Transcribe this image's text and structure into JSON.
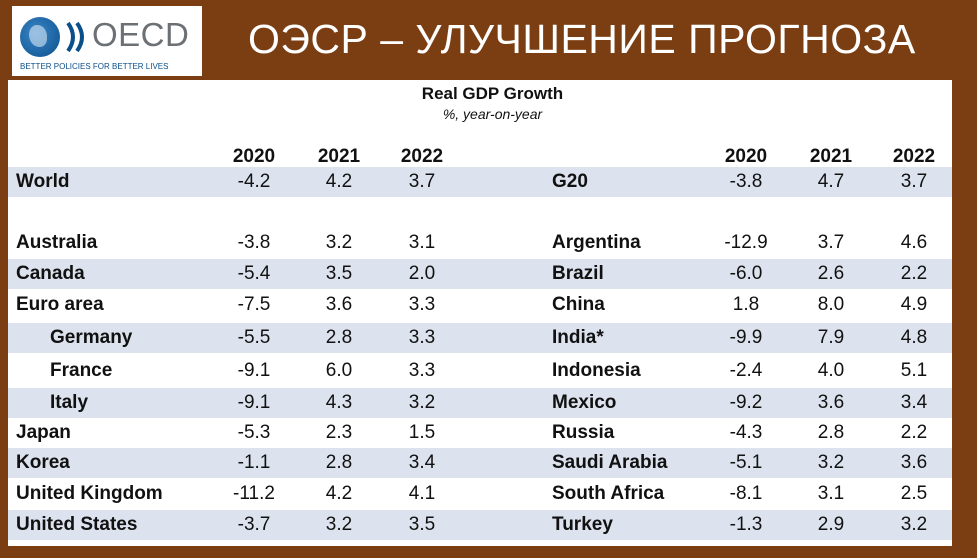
{
  "logo": {
    "text": "OECD",
    "tagline": "BETTER POLICIES FOR BETTER LIVES"
  },
  "header": {
    "title": "ОЭСР – УЛУЧШЕНИЕ ПРОГНОЗА"
  },
  "table": {
    "title": "Real GDP Growth",
    "subtitle": "%, year-on-year",
    "years": [
      "2020",
      "2021",
      "2022"
    ],
    "rows": [
      {
        "left": {
          "name": "World",
          "v": [
            "-4.2",
            "4.2",
            "3.7"
          ]
        },
        "right": {
          "name": "G20",
          "v": [
            "-3.8",
            "4.7",
            "3.7"
          ]
        }
      },
      {
        "left": {
          "name": "Australia",
          "v": [
            "-3.8",
            "3.2",
            "3.1"
          ]
        },
        "right": {
          "name": "Argentina",
          "v": [
            "-12.9",
            "3.7",
            "4.6"
          ]
        }
      },
      {
        "left": {
          "name": "Canada",
          "v": [
            "-5.4",
            "3.5",
            "2.0"
          ]
        },
        "right": {
          "name": "Brazil",
          "v": [
            "-6.0",
            "2.6",
            "2.2"
          ]
        }
      },
      {
        "left": {
          "name": "Euro area",
          "v": [
            "-7.5",
            "3.6",
            "3.3"
          ]
        },
        "right": {
          "name": "China",
          "v": [
            "1.8",
            "8.0",
            "4.9"
          ]
        }
      },
      {
        "left": {
          "name": "Germany",
          "v": [
            "-5.5",
            "2.8",
            "3.3"
          ]
        },
        "right": {
          "name": "India*",
          "v": [
            "-9.9",
            "7.9",
            "4.8"
          ]
        }
      },
      {
        "left": {
          "name": "France",
          "v": [
            "-9.1",
            "6.0",
            "3.3"
          ]
        },
        "right": {
          "name": "Indonesia",
          "v": [
            "-2.4",
            "4.0",
            "5.1"
          ]
        }
      },
      {
        "left": {
          "name": "Italy",
          "v": [
            "-9.1",
            "4.3",
            "3.2"
          ]
        },
        "right": {
          "name": "Mexico",
          "v": [
            "-9.2",
            "3.6",
            "3.4"
          ]
        }
      },
      {
        "left": {
          "name": "Japan",
          "v": [
            "-5.3",
            "2.3",
            "1.5"
          ]
        },
        "right": {
          "name": "Russia",
          "v": [
            "-4.3",
            "2.8",
            "2.2"
          ]
        }
      },
      {
        "left": {
          "name": "Korea",
          "v": [
            "-1.1",
            "2.8",
            "3.4"
          ]
        },
        "right": {
          "name": "Saudi Arabia",
          "v": [
            "-5.1",
            "3.2",
            "3.6"
          ]
        }
      },
      {
        "left": {
          "name": "United Kingdom",
          "v": [
            "-11.2",
            "4.2",
            "4.1"
          ]
        },
        "right": {
          "name": "South Africa",
          "v": [
            "-8.1",
            "3.1",
            "2.5"
          ]
        }
      },
      {
        "left": {
          "name": "United States",
          "v": [
            "-3.7",
            "3.2",
            "3.5"
          ]
        },
        "right": {
          "name": "Turkey",
          "v": [
            "-1.3",
            "2.9",
            "3.2"
          ]
        }
      }
    ]
  },
  "colors": {
    "background": "#7a3e12",
    "band": "#dde3ee",
    "logo_blue": "#0b4f8a"
  }
}
